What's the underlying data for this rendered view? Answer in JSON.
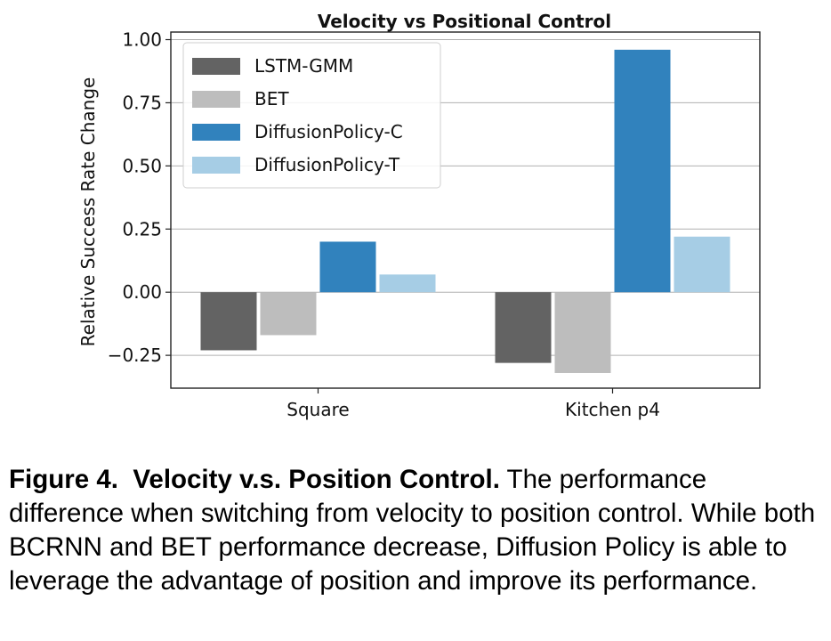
{
  "chart_data": {
    "type": "bar",
    "title": "Velocity vs Positional Control",
    "xlabel": "",
    "ylabel": "Relative Success Rate Change",
    "categories": [
      "Square",
      "Kitchen p4"
    ],
    "series": [
      {
        "name": "LSTM-GMM",
        "color": "#636363",
        "values": [
          -0.23,
          -0.28
        ]
      },
      {
        "name": "BET",
        "color": "#bdbdbd",
        "values": [
          -0.17,
          -0.32
        ]
      },
      {
        "name": "DiffusionPolicy-C",
        "color": "#3182bd",
        "values": [
          0.2,
          0.96
        ]
      },
      {
        "name": "DiffusionPolicy-T",
        "color": "#a6cde5",
        "values": [
          0.07,
          0.22
        ]
      }
    ],
    "ylim": [
      -0.38,
      1.03
    ],
    "yticks": [
      1.0,
      0.75,
      0.5,
      0.25,
      0.0,
      -0.25
    ],
    "ytick_labels": [
      "1.00",
      "0.75",
      "0.50",
      "0.25",
      "0.00",
      "−0.25"
    ],
    "grid": true,
    "legend_position": "top-left"
  },
  "caption": {
    "label": "Figure 4.",
    "heading": "Velocity v.s. Position Control.",
    "text": " The performance difference when switching from velocity to position control. While both BCRNN and BET performance decrease, Diffusion Policy is able to leverage the advantage of position and improve its performance."
  }
}
